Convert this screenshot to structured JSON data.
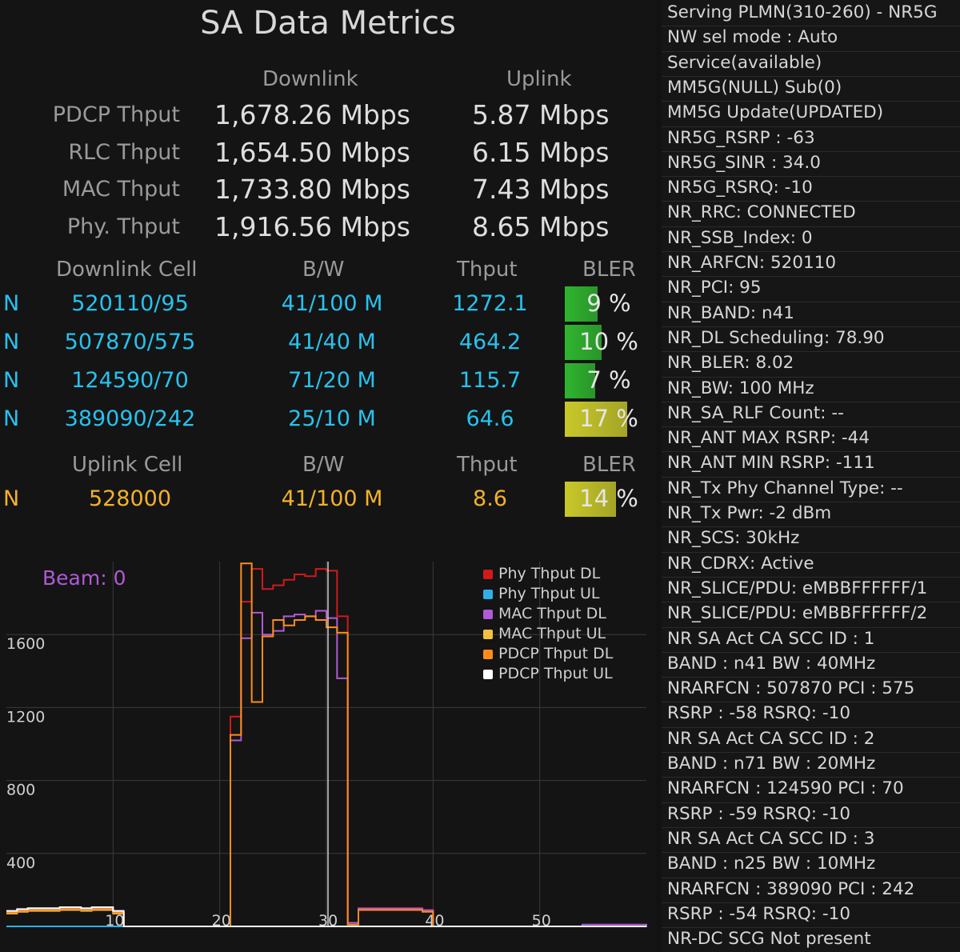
{
  "title": "SA Data Metrics",
  "columns": {
    "downlink": "Downlink",
    "uplink": "Uplink"
  },
  "throughput_rows": [
    {
      "label": "PDCP Thput",
      "dl": "1,678.26 Mbps",
      "ul": "5.87 Mbps"
    },
    {
      "label": "RLC Thput",
      "dl": "1,654.50 Mbps",
      "ul": "6.15 Mbps"
    },
    {
      "label": "MAC Thput",
      "dl": "1,733.80 Mbps",
      "ul": "7.43 Mbps"
    },
    {
      "label": "Phy. Thput",
      "dl": "1,916.56 Mbps",
      "ul": "8.65 Mbps"
    }
  ],
  "downlink_header": {
    "cell": "Downlink Cell",
    "bw": "B/W",
    "thput": "Thput",
    "bler": "BLER"
  },
  "downlink_cells": [
    {
      "type": "N",
      "cell": "520110/95",
      "bw": "41/100 M",
      "thput": "1272.1",
      "bler_text": "9 %",
      "bler": 9,
      "color": "#2fb52f"
    },
    {
      "type": "N",
      "cell": "507870/575",
      "bw": "41/40 M",
      "thput": "464.2",
      "bler_text": "10 %",
      "bler": 10,
      "color": "#2fb52f"
    },
    {
      "type": "N",
      "cell": "124590/70",
      "bw": "71/20 M",
      "thput": "115.7",
      "bler_text": "7 %",
      "bler": 7,
      "color": "#2fb52f"
    },
    {
      "type": "N",
      "cell": "389090/242",
      "bw": "25/10 M",
      "thput": "64.6",
      "bler_text": "17 %",
      "bler": 17,
      "color": "#c8c82a"
    }
  ],
  "uplink_header": {
    "cell": "Uplink Cell",
    "bw": "B/W",
    "thput": "Thput",
    "bler": "BLER"
  },
  "uplink_cells": [
    {
      "type": "N",
      "cell": "528000",
      "bw": "41/100 M",
      "thput": "8.6",
      "bler_text": "14 %",
      "bler": 14,
      "color": "#c8c82a"
    }
  ],
  "beam_label": "Beam: 0",
  "legend": [
    {
      "name": "Phy Thput DL",
      "color": "#d11a1a"
    },
    {
      "name": "Phy Thput UL",
      "color": "#2fb0e8"
    },
    {
      "name": "MAC Thput DL",
      "color": "#b05ad6"
    },
    {
      "name": "MAC Thput UL",
      "color": "#f3c040"
    },
    {
      "name": "PDCP Thput DL",
      "color": "#ff8c1a"
    },
    {
      "name": "PDCP Thput UL",
      "color": "#ffffff"
    }
  ],
  "chart_data": {
    "type": "line",
    "x_ticks": [
      "10",
      "20",
      "30",
      "40",
      "50"
    ],
    "y_ticks": [
      "400",
      "800",
      "1200",
      "1600"
    ],
    "xlim": [
      0,
      60
    ],
    "ylim": [
      0,
      2000
    ],
    "cursor_x": 30,
    "series": [
      {
        "name": "Phy Thput DL",
        "color": "#d11a1a",
        "points": [
          [
            0,
            80
          ],
          [
            1,
            90
          ],
          [
            2,
            95
          ],
          [
            3,
            95
          ],
          [
            4,
            95
          ],
          [
            5,
            100
          ],
          [
            6,
            100
          ],
          [
            7,
            95
          ],
          [
            8,
            100
          ],
          [
            9,
            100
          ],
          [
            10,
            80
          ],
          [
            11,
            0
          ],
          [
            20,
            0
          ],
          [
            21,
            1150
          ],
          [
            22,
            1780
          ],
          [
            23,
            1960
          ],
          [
            24,
            1850
          ],
          [
            25,
            1870
          ],
          [
            26,
            1900
          ],
          [
            27,
            1930
          ],
          [
            28,
            1920
          ],
          [
            29,
            1960
          ],
          [
            30,
            1950
          ],
          [
            31,
            1700
          ],
          [
            32,
            20
          ],
          [
            33,
            100
          ],
          [
            34,
            100
          ],
          [
            35,
            100
          ],
          [
            36,
            100
          ],
          [
            37,
            100
          ],
          [
            38,
            100
          ],
          [
            39,
            90
          ],
          [
            40,
            0
          ],
          [
            60,
            0
          ]
        ]
      },
      {
        "name": "Phy Thput UL",
        "color": "#2fb0e8",
        "points": [
          [
            0,
            0
          ],
          [
            60,
            5
          ]
        ]
      },
      {
        "name": "MAC Thput DL",
        "color": "#b05ad6",
        "points": [
          [
            0,
            78
          ],
          [
            1,
            88
          ],
          [
            2,
            92
          ],
          [
            3,
            92
          ],
          [
            4,
            92
          ],
          [
            5,
            98
          ],
          [
            6,
            98
          ],
          [
            7,
            92
          ],
          [
            8,
            98
          ],
          [
            9,
            98
          ],
          [
            10,
            78
          ],
          [
            11,
            0
          ],
          [
            20,
            0
          ],
          [
            21,
            1020
          ],
          [
            22,
            1580
          ],
          [
            23,
            1720
          ],
          [
            24,
            1600
          ],
          [
            25,
            1620
          ],
          [
            26,
            1700
          ],
          [
            27,
            1710
          ],
          [
            28,
            1700
          ],
          [
            29,
            1730
          ],
          [
            30,
            1690
          ],
          [
            31,
            1360
          ],
          [
            32,
            20
          ],
          [
            33,
            98
          ],
          [
            34,
            98
          ],
          [
            35,
            98
          ],
          [
            36,
            98
          ],
          [
            37,
            98
          ],
          [
            38,
            98
          ],
          [
            39,
            88
          ],
          [
            40,
            0
          ],
          [
            53,
            0
          ],
          [
            54,
            10
          ],
          [
            60,
            0
          ]
        ]
      },
      {
        "name": "MAC Thput UL",
        "color": "#f3c040",
        "points": [
          [
            0,
            70
          ],
          [
            1,
            80
          ],
          [
            2,
            85
          ],
          [
            3,
            85
          ],
          [
            4,
            85
          ],
          [
            5,
            90
          ],
          [
            6,
            90
          ],
          [
            7,
            85
          ],
          [
            8,
            90
          ],
          [
            9,
            90
          ],
          [
            10,
            70
          ],
          [
            11,
            0
          ],
          [
            60,
            0
          ]
        ]
      },
      {
        "name": "PDCP Thput DL",
        "color": "#ff8c1a",
        "points": [
          [
            0,
            75
          ],
          [
            1,
            85
          ],
          [
            2,
            90
          ],
          [
            3,
            90
          ],
          [
            4,
            90
          ],
          [
            5,
            95
          ],
          [
            6,
            95
          ],
          [
            7,
            90
          ],
          [
            8,
            95
          ],
          [
            9,
            95
          ],
          [
            10,
            75
          ],
          [
            11,
            0
          ],
          [
            20,
            0
          ],
          [
            21,
            1050
          ],
          [
            22,
            1990
          ],
          [
            23,
            1230
          ],
          [
            24,
            1590
          ],
          [
            25,
            1680
          ],
          [
            26,
            1650
          ],
          [
            27,
            1680
          ],
          [
            28,
            1700
          ],
          [
            29,
            1680
          ],
          [
            30,
            1640
          ],
          [
            31,
            1610
          ],
          [
            32,
            10
          ],
          [
            33,
            90
          ],
          [
            34,
            90
          ],
          [
            35,
            90
          ],
          [
            36,
            90
          ],
          [
            37,
            90
          ],
          [
            38,
            90
          ],
          [
            39,
            80
          ],
          [
            40,
            0
          ],
          [
            60,
            0
          ]
        ]
      },
      {
        "name": "PDCP Thput UL",
        "color": "#ffffff",
        "points": [
          [
            0,
            85
          ],
          [
            1,
            95
          ],
          [
            2,
            100
          ],
          [
            3,
            100
          ],
          [
            4,
            100
          ],
          [
            5,
            105
          ],
          [
            6,
            105
          ],
          [
            7,
            100
          ],
          [
            8,
            105
          ],
          [
            9,
            105
          ],
          [
            10,
            85
          ],
          [
            11,
            0
          ],
          [
            60,
            0
          ]
        ]
      }
    ]
  },
  "info_panel": [
    "Serving PLMN(310-260) - NR5G",
    "NW sel mode : Auto",
    "Service(available)",
    "MM5G(NULL) Sub(0)",
    "MM5G Update(UPDATED)",
    "NR5G_RSRP : -63",
    "NR5G_SINR : 34.0",
    "NR5G_RSRQ: -10",
    "NR_RRC: CONNECTED",
    "NR_SSB_Index: 0",
    "NR_ARFCN: 520110",
    "NR_PCI: 95",
    "NR_BAND: n41",
    "NR_DL Scheduling: 78.90",
    "NR_BLER: 8.02",
    "NR_BW: 100 MHz",
    "NR_SA_RLF Count: --",
    "NR_ANT MAX RSRP: -44",
    "NR_ANT MIN RSRP: -111",
    "NR_Tx Phy Channel Type: --",
    "NR_Tx Pwr: -2 dBm",
    "NR_SCS: 30kHz",
    "NR_CDRX: Active",
    "NR_SLICE/PDU: eMBBFFFFFF/1",
    "NR_SLICE/PDU: eMBBFFFFFF/2",
    "NR SA Act CA SCC ID : 1",
    "BAND : n41  BW : 40MHz",
    "NRARFCN : 507870  PCI : 575",
    "RSRP : -58  RSRQ: -10",
    "NR SA Act CA SCC ID : 2",
    "BAND : n71  BW : 20MHz",
    "NRARFCN : 124590  PCI : 70",
    "RSRP : -59  RSRQ: -10",
    "NR SA Act CA SCC ID : 3",
    "BAND : n25  BW : 10MHz",
    "NRARFCN : 389090  PCI : 242",
    "RSRP : -54  RSRQ: -10",
    "NR-DC SCG Not present"
  ]
}
